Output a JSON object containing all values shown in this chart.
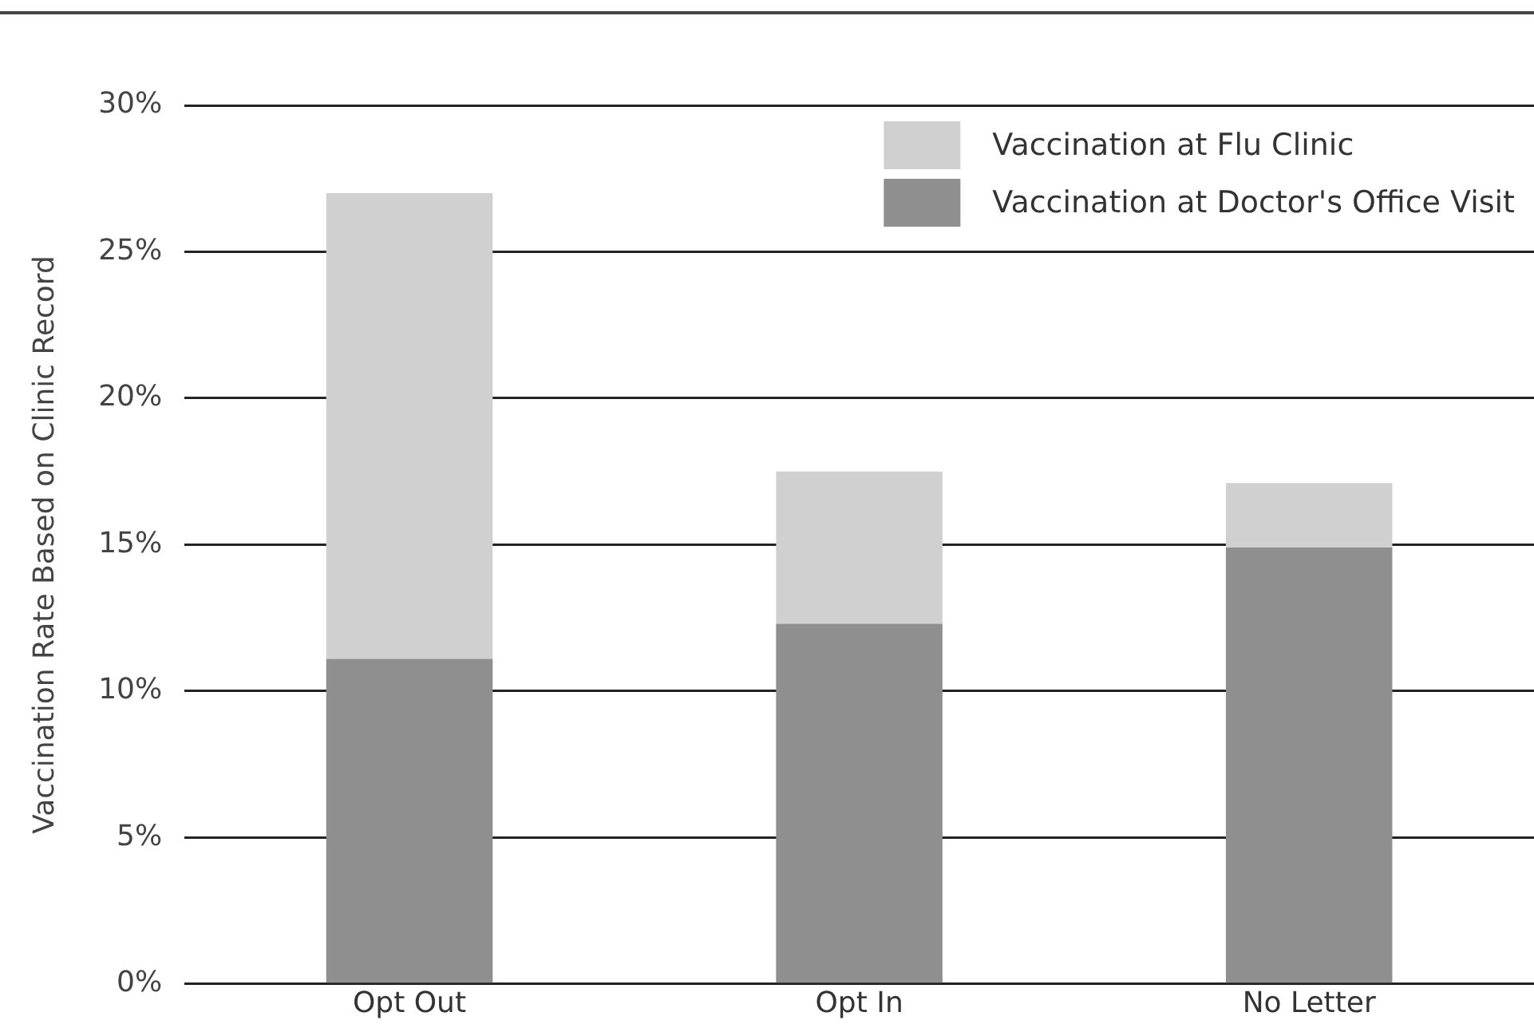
{
  "chart_data": {
    "type": "bar",
    "stacked": true,
    "ylabel": "Vaccination Rate Based on Clinic Record",
    "categories": [
      "Opt Out",
      "Opt In",
      "No Letter"
    ],
    "series": [
      {
        "name": "Vaccination at Doctor's Office Visit",
        "color": "#8f8f8f",
        "values": [
          11.1,
          12.3,
          14.9
        ]
      },
      {
        "name": "Vaccination at Flu Clinic",
        "color": "#d0d0d0",
        "values": [
          15.9,
          5.2,
          2.2
        ]
      }
    ],
    "ylim": [
      0,
      30
    ],
    "yticks": [
      {
        "value": 0,
        "label": "0%"
      },
      {
        "value": 5,
        "label": "5%"
      },
      {
        "value": 10,
        "label": "10%"
      },
      {
        "value": 15,
        "label": "15%"
      },
      {
        "value": 20,
        "label": "20%"
      },
      {
        "value": 25,
        "label": "25%"
      },
      {
        "value": 30,
        "label": "30%"
      }
    ],
    "grid": "y",
    "legend": "top right"
  }
}
